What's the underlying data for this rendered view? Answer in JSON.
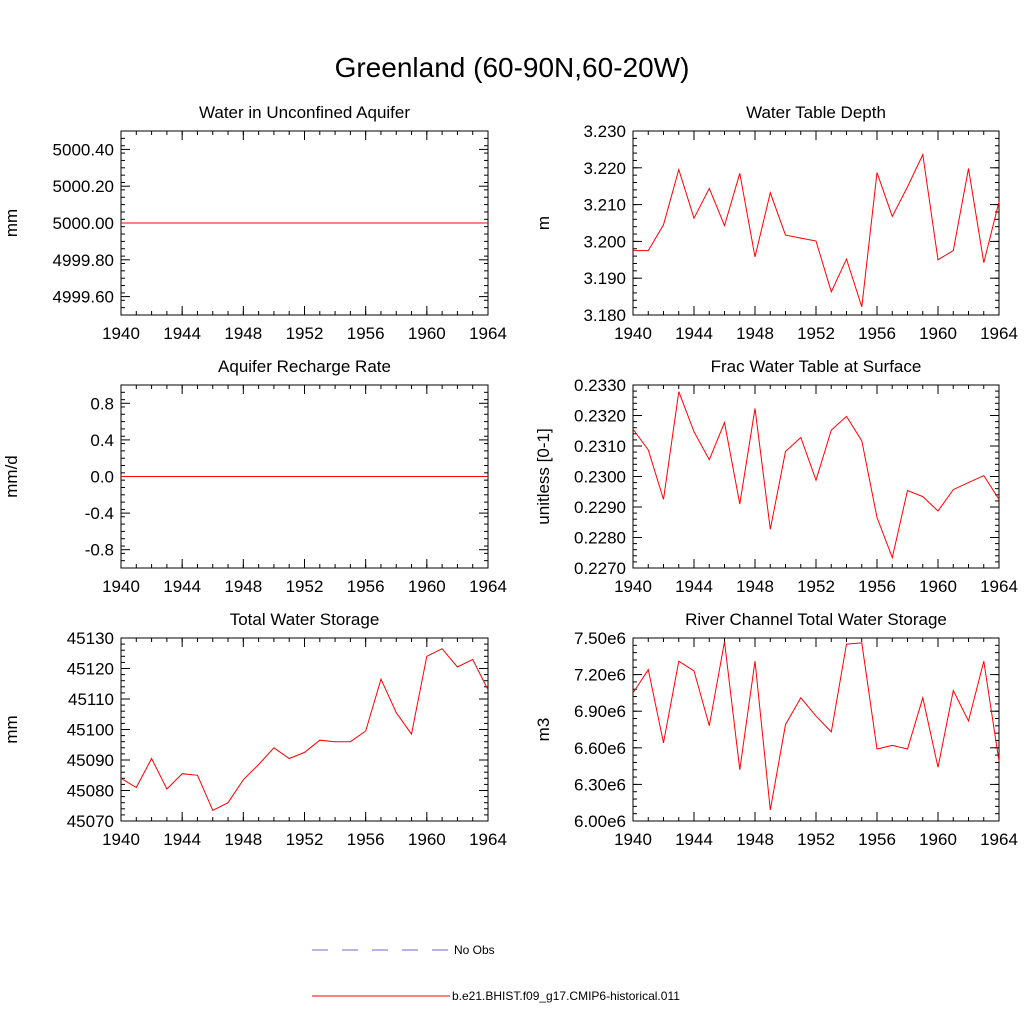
{
  "figure_title": "Greenland (60-90N,60-20W)",
  "colors": {
    "model": "#ff0000",
    "obs": "#6e6ec8",
    "axis": "#000000"
  },
  "legend": [
    {
      "label": "No Obs",
      "style": "dashed",
      "color": "#6e6ec8"
    },
    {
      "label": "b.e21.BHIST.f09_g17.CMIP6-historical.011",
      "style": "solid",
      "color": "#ff0000"
    }
  ],
  "chart_data": [
    {
      "type": "line",
      "title": "Water in Unconfined Aquifer",
      "ylabel": "mm",
      "xlim": [
        1940,
        1964
      ],
      "ylim": [
        4999.5,
        5000.5
      ],
      "x_ticks": [
        1940,
        1944,
        1948,
        1952,
        1956,
        1960,
        1964
      ],
      "y_ticks": [
        4999.6,
        4999.8,
        5000.0,
        5000.2,
        5000.4
      ],
      "y_tick_labels": [
        "4999.60",
        "4999.80",
        "5000.00",
        "5000.20",
        "5000.40"
      ],
      "y_minor_step": 0.04,
      "grid": false,
      "series": [
        {
          "x": [
            1940,
            1941,
            1942,
            1943,
            1944,
            1945,
            1946,
            1947,
            1948,
            1949,
            1950,
            1951,
            1952,
            1953,
            1954,
            1955,
            1956,
            1957,
            1958,
            1959,
            1960,
            1961,
            1962,
            1963,
            1964
          ],
          "values": [
            5000,
            5000,
            5000,
            5000,
            5000,
            5000,
            5000,
            5000,
            5000,
            5000,
            5000,
            5000,
            5000,
            5000,
            5000,
            5000,
            5000,
            5000,
            5000,
            5000,
            5000,
            5000,
            5000,
            5000,
            5000
          ]
        }
      ]
    },
    {
      "type": "line",
      "title": "Water Table Depth",
      "ylabel": "m",
      "xlim": [
        1940,
        1964
      ],
      "ylim": [
        3.18,
        3.23
      ],
      "x_ticks": [
        1940,
        1944,
        1948,
        1952,
        1956,
        1960,
        1964
      ],
      "y_ticks": [
        3.18,
        3.19,
        3.2,
        3.21,
        3.22,
        3.23
      ],
      "y_tick_labels": [
        "3.180",
        "3.190",
        "3.200",
        "3.210",
        "3.220",
        "3.230"
      ],
      "y_minor_step": 0.002,
      "grid": false,
      "series": [
        {
          "x": [
            1940,
            1941,
            1942,
            1943,
            1944,
            1945,
            1946,
            1947,
            1948,
            1949,
            1950,
            1951,
            1952,
            1953,
            1954,
            1955,
            1956,
            1957,
            1958,
            1959,
            1960,
            1961,
            1962,
            1963,
            1964
          ],
          "values": [
            3.1975,
            3.1975,
            3.2045,
            3.2195,
            3.2063,
            3.2144,
            3.2043,
            3.2185,
            3.1958,
            3.2132,
            3.2017,
            3.2009,
            3.2001,
            3.1863,
            3.1952,
            3.1822,
            3.2187,
            3.2068,
            3.2148,
            3.2236,
            3.195,
            3.1975,
            3.2198,
            3.1942,
            3.2108
          ]
        }
      ]
    },
    {
      "type": "line",
      "title": "Aquifer Recharge Rate",
      "ylabel": "mm/d",
      "xlim": [
        1940,
        1964
      ],
      "ylim": [
        -1.0,
        1.0
      ],
      "x_ticks": [
        1940,
        1944,
        1948,
        1952,
        1956,
        1960,
        1964
      ],
      "y_ticks": [
        -0.8,
        -0.4,
        0.0,
        0.4,
        0.8
      ],
      "y_tick_labels": [
        "-0.8",
        "-0.4",
        "0.0",
        "0.4",
        "0.8"
      ],
      "y_minor_step": 0.08,
      "grid": false,
      "series": [
        {
          "x": [
            1940,
            1941,
            1942,
            1943,
            1944,
            1945,
            1946,
            1947,
            1948,
            1949,
            1950,
            1951,
            1952,
            1953,
            1954,
            1955,
            1956,
            1957,
            1958,
            1959,
            1960,
            1961,
            1962,
            1963,
            1964
          ],
          "values": [
            0,
            0,
            0,
            0,
            0,
            0,
            0,
            0,
            0,
            0,
            0,
            0,
            0,
            0,
            0,
            0,
            0,
            0,
            0,
            0,
            0,
            0,
            0,
            0,
            0
          ]
        }
      ]
    },
    {
      "type": "line",
      "title": "Frac Water Table at Surface",
      "ylabel": "unitless [0-1]",
      "xlim": [
        1940,
        1964
      ],
      "ylim": [
        0.227,
        0.233
      ],
      "x_ticks": [
        1940,
        1944,
        1948,
        1952,
        1956,
        1960,
        1964
      ],
      "y_ticks": [
        0.227,
        0.228,
        0.229,
        0.23,
        0.231,
        0.232,
        0.233
      ],
      "y_tick_labels": [
        "0.2270",
        "0.2280",
        "0.2290",
        "0.2300",
        "0.2310",
        "0.2320",
        "0.2330"
      ],
      "y_minor_step": 0.0002,
      "grid": false,
      "series": [
        {
          "x": [
            1940,
            1941,
            1942,
            1943,
            1944,
            1945,
            1946,
            1947,
            1948,
            1949,
            1950,
            1951,
            1952,
            1953,
            1954,
            1955,
            1956,
            1957,
            1958,
            1959,
            1960,
            1961,
            1962,
            1963,
            1964
          ],
          "values": [
            0.23155,
            0.23087,
            0.22925,
            0.23278,
            0.23147,
            0.23055,
            0.23177,
            0.2291,
            0.23223,
            0.22827,
            0.23082,
            0.23128,
            0.22988,
            0.23152,
            0.23197,
            0.23117,
            0.22866,
            0.22734,
            0.22954,
            0.22934,
            0.22887,
            0.22957,
            0.2298,
            0.23003,
            0.22925
          ]
        }
      ]
    },
    {
      "type": "line",
      "title": "Total Water Storage",
      "ylabel": "mm",
      "xlim": [
        1940,
        1964
      ],
      "ylim": [
        45070,
        45130
      ],
      "x_ticks": [
        1940,
        1944,
        1948,
        1952,
        1956,
        1960,
        1964
      ],
      "y_ticks": [
        45070,
        45080,
        45090,
        45100,
        45110,
        45120,
        45130
      ],
      "y_tick_labels": [
        "45070",
        "45080",
        "45090",
        "45100",
        "45110",
        "45120",
        "45130"
      ],
      "y_minor_step": 2,
      "grid": false,
      "series": [
        {
          "x": [
            1940,
            1941,
            1942,
            1943,
            1944,
            1945,
            1946,
            1947,
            1948,
            1949,
            1950,
            1951,
            1952,
            1953,
            1954,
            1955,
            1956,
            1957,
            1958,
            1959,
            1960,
            1961,
            1962,
            1963,
            1964
          ],
          "values": [
            45084,
            45081,
            45090.5,
            45080.5,
            45085.5,
            45085,
            45073.5,
            45076,
            45083.5,
            45088.5,
            45094,
            45090.5,
            45092.5,
            45096.5,
            45096,
            45096,
            45099.5,
            45116.5,
            45105.5,
            45098.5,
            45124,
            45126.5,
            45120.5,
            45123,
            45113
          ]
        }
      ]
    },
    {
      "type": "line",
      "title": "River Channel Total Water Storage",
      "ylabel": "m3",
      "xlim": [
        1940,
        1964
      ],
      "ylim": [
        6000000,
        7500000
      ],
      "x_ticks": [
        1940,
        1944,
        1948,
        1952,
        1956,
        1960,
        1964
      ],
      "y_ticks": [
        6000000,
        6300000,
        6600000,
        6900000,
        7200000,
        7500000
      ],
      "y_tick_labels": [
        "6.00e6",
        "6.30e6",
        "6.60e6",
        "6.90e6",
        "7.20e6",
        "7.50e6"
      ],
      "y_minor_step": 60000,
      "grid": false,
      "series": [
        {
          "x": [
            1940,
            1941,
            1942,
            1943,
            1944,
            1945,
            1946,
            1947,
            1948,
            1949,
            1950,
            1951,
            1952,
            1953,
            1954,
            1955,
            1956,
            1957,
            1958,
            1959,
            1960,
            1961,
            1962,
            1963,
            1964
          ],
          "values": [
            7050000,
            7240000,
            6640000,
            7310000,
            7230000,
            6780000,
            7470000,
            6420000,
            7310000,
            6090000,
            6790000,
            7010000,
            6860000,
            6730000,
            7450000,
            7460000,
            6590000,
            6620000,
            6590000,
            7010000,
            6440000,
            7070000,
            6820000,
            7310000,
            6490000
          ]
        }
      ]
    }
  ]
}
